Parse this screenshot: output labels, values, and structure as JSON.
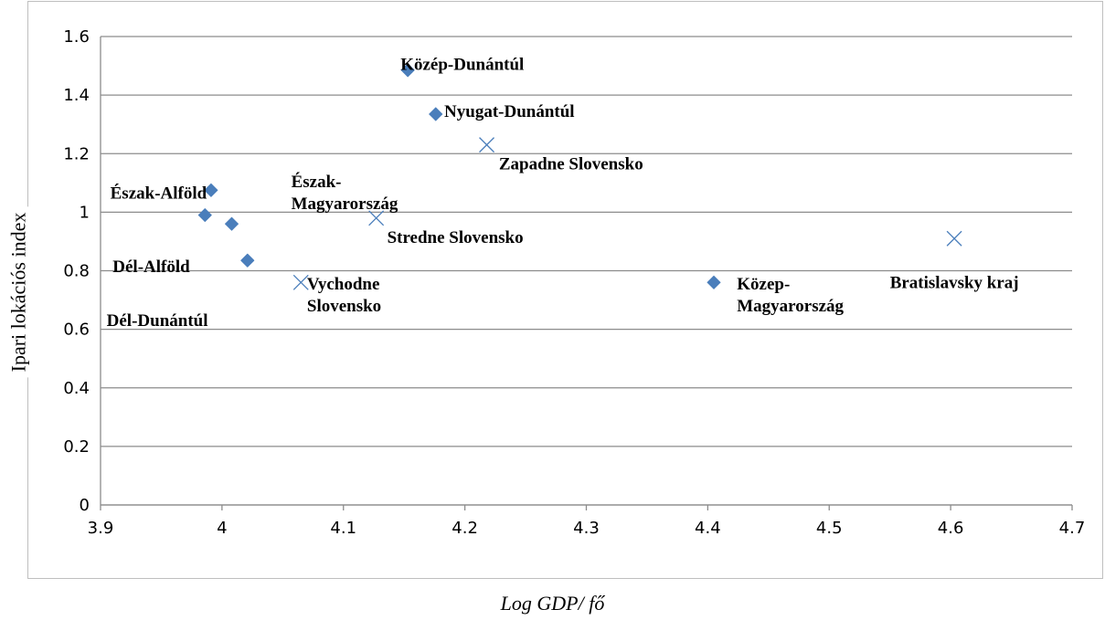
{
  "chart_data": {
    "type": "scatter",
    "title": "",
    "xlabel": "Log GDP/ fő",
    "ylabel": "Ipari lokációs index",
    "xlim": [
      3.9,
      4.7
    ],
    "ylim": [
      0,
      1.6
    ],
    "x_ticks": [
      "3.9",
      "4",
      "4.1",
      "4.2",
      "4.3",
      "4.4",
      "4.5",
      "4.6",
      "4.7"
    ],
    "y_ticks": [
      "0",
      "0.2",
      "0.4",
      "0.6",
      "0.8",
      "1",
      "1.2",
      "1.4",
      "1.6"
    ],
    "grid": "horizontal",
    "colors": {
      "marker": "#4a7ebb",
      "grid": "#8c8c8c",
      "axis": "#8c8c8c",
      "frame": "#bfbfbf"
    },
    "series": [
      {
        "marker": "diamond",
        "points": [
          {
            "label": "Közép-Dunántúl",
            "x": 4.153,
            "y": 1.485
          },
          {
            "label": "Nyugat-Dunántúl",
            "x": 4.176,
            "y": 1.335
          },
          {
            "label": "Észak-Alföld",
            "x": 3.991,
            "y": 1.075
          },
          {
            "label": "Észak-Magyarország",
            "x": 4.008,
            "y": 0.96
          },
          {
            "label": "Dél-Alföld",
            "x": 3.986,
            "y": 0.99
          },
          {
            "label": "Dél-Dunántúl",
            "x": 4.021,
            "y": 0.835
          },
          {
            "label": "Közép-Magyarország",
            "x": 4.405,
            "y": 0.76
          }
        ]
      },
      {
        "marker": "x",
        "points": [
          {
            "label": "Zapadne Slovensko",
            "x": 4.218,
            "y": 1.23
          },
          {
            "label": "Stredne Slovensko",
            "x": 4.127,
            "y": 0.98
          },
          {
            "label": "Vychodne Slovensko",
            "x": 4.065,
            "y": 0.76
          },
          {
            "label": "Bratislavsky kraj",
            "x": 4.603,
            "y": 0.91
          }
        ]
      }
    ],
    "annotations": [
      {
        "lines": [
          "Közép-Dunántúl"
        ],
        "x": 4.147,
        "y": 1.545
      },
      {
        "lines": [
          "Nyugat-Dunántúl"
        ],
        "x": 4.183,
        "y": 1.385
      },
      {
        "lines": [
          "Zapadne Slovensko"
        ],
        "x": 4.228,
        "y": 1.205
      },
      {
        "lines": [
          "Észak-Alföld"
        ],
        "x": 3.908,
        "y": 1.105
      },
      {
        "lines": [
          "Észak-",
          "Magyarország"
        ],
        "x": 4.057,
        "y": 1.145
      },
      {
        "lines": [
          "Stredne Slovensko"
        ],
        "x": 4.136,
        "y": 0.955
      },
      {
        "lines": [
          "Dél-Alföld"
        ],
        "x": 3.91,
        "y": 0.855
      },
      {
        "lines": [
          "Dél-Dunántúl"
        ],
        "x": 3.905,
        "y": 0.67
      },
      {
        "lines": [
          "Vychodne",
          "Slovensko"
        ],
        "x": 4.07,
        "y": 0.795
      },
      {
        "lines": [
          "Közep-",
          "Magyarország"
        ],
        "x": 4.424,
        "y": 0.795
      },
      {
        "lines": [
          "Bratislavsky kraj"
        ],
        "x": 4.55,
        "y": 0.8
      }
    ]
  }
}
